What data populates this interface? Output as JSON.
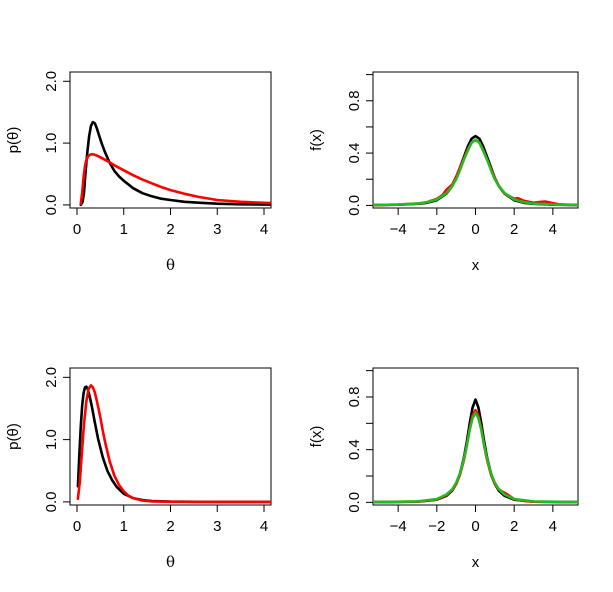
{
  "chart_data": [
    {
      "type": "line",
      "panel": "top-left",
      "xlabel": "θ",
      "ylabel": "p(θ)",
      "xlim": [
        -0.15,
        4.15
      ],
      "ylim": [
        -0.05,
        2.15
      ],
      "xticks": [
        0,
        1,
        2,
        3,
        4
      ],
      "xtick_labels": [
        "0",
        "1",
        "2",
        "3",
        "4"
      ],
      "yticks": [
        0.0,
        1.0,
        2.0
      ],
      "ytick_labels": [
        "0.0",
        "1.0",
        "2.0"
      ],
      "grid": false,
      "series": [
        {
          "color": "#000000",
          "x": [
            0.08,
            0.12,
            0.15,
            0.18,
            0.22,
            0.26,
            0.3,
            0.34,
            0.38,
            0.42,
            0.47,
            0.53,
            0.6,
            0.7,
            0.8,
            0.9,
            1.0,
            1.2,
            1.4,
            1.6,
            1.8,
            2.0,
            2.3,
            2.6,
            3.0,
            3.5,
            4.15
          ],
          "y": [
            0.0,
            0.05,
            0.2,
            0.5,
            0.85,
            1.12,
            1.28,
            1.34,
            1.32,
            1.25,
            1.13,
            0.99,
            0.85,
            0.68,
            0.55,
            0.46,
            0.39,
            0.27,
            0.19,
            0.14,
            0.1,
            0.08,
            0.05,
            0.035,
            0.02,
            0.01,
            0.005
          ]
        },
        {
          "color": "#ff0000",
          "x": [
            0.08,
            0.11,
            0.14,
            0.17,
            0.2,
            0.24,
            0.28,
            0.32,
            0.36,
            0.4,
            0.5,
            0.6,
            0.7,
            0.8,
            1.0,
            1.2,
            1.4,
            1.6,
            1.8,
            2.0,
            2.3,
            2.6,
            3.0,
            3.5,
            4.15
          ],
          "y": [
            0.02,
            0.2,
            0.45,
            0.63,
            0.73,
            0.79,
            0.81,
            0.82,
            0.815,
            0.805,
            0.77,
            0.73,
            0.69,
            0.64,
            0.56,
            0.48,
            0.41,
            0.35,
            0.29,
            0.24,
            0.18,
            0.13,
            0.08,
            0.05,
            0.03
          ]
        }
      ]
    },
    {
      "type": "line",
      "panel": "top-right",
      "xlabel": "x",
      "ylabel": "f(x)",
      "xlim": [
        -5.3,
        5.3
      ],
      "ylim": [
        -0.02,
        1.02
      ],
      "xticks": [
        -4,
        -2,
        0,
        2,
        4
      ],
      "xtick_labels": [
        "−4",
        "−2",
        "0",
        "2",
        "4"
      ],
      "yticks": [
        0.0,
        0.4,
        0.8
      ],
      "ytick_labels": [
        "0.0",
        "0.4",
        "0.8"
      ],
      "yminor_ticks": [
        0.2,
        0.6,
        1.0
      ],
      "grid": false,
      "series": [
        {
          "color": "#000000",
          "x": [
            -5.3,
            -4,
            -3,
            -2.5,
            -2,
            -1.5,
            -1.2,
            -1,
            -0.8,
            -0.6,
            -0.4,
            -0.2,
            0,
            0.2,
            0.4,
            0.6,
            0.8,
            1,
            1.2,
            1.5,
            2,
            2.5,
            3,
            4,
            5.3
          ],
          "y": [
            0.002,
            0.005,
            0.012,
            0.02,
            0.04,
            0.09,
            0.15,
            0.21,
            0.29,
            0.37,
            0.45,
            0.51,
            0.53,
            0.51,
            0.45,
            0.37,
            0.29,
            0.21,
            0.15,
            0.09,
            0.04,
            0.02,
            0.012,
            0.005,
            0.002
          ]
        },
        {
          "color": "#ff0000",
          "x": [
            -5.3,
            -4,
            -3,
            -2.5,
            -2,
            -1.7,
            -1.5,
            -1.2,
            -1,
            -0.8,
            -0.6,
            -0.4,
            -0.2,
            0,
            0.2,
            0.4,
            0.6,
            0.8,
            1,
            1.2,
            1.5,
            2,
            2.2,
            2.5,
            3,
            3.3,
            3.6,
            3.9,
            4.3,
            5.3
          ],
          "y": [
            0.002,
            0.006,
            0.014,
            0.025,
            0.05,
            0.08,
            0.12,
            0.16,
            0.22,
            0.29,
            0.36,
            0.43,
            0.48,
            0.5,
            0.48,
            0.42,
            0.35,
            0.28,
            0.21,
            0.15,
            0.09,
            0.05,
            0.055,
            0.035,
            0.02,
            0.025,
            0.03,
            0.02,
            0.008,
            0.003
          ]
        },
        {
          "color": "#22bb22",
          "x": [
            -5.3,
            -4,
            -3,
            -2.5,
            -2,
            -1.5,
            -1.2,
            -1,
            -0.8,
            -0.6,
            -0.4,
            -0.2,
            0,
            0.2,
            0.4,
            0.6,
            0.8,
            1,
            1.2,
            1.5,
            2,
            2.5,
            3,
            4,
            5.3
          ],
          "y": [
            0.003,
            0.006,
            0.014,
            0.024,
            0.045,
            0.095,
            0.15,
            0.2,
            0.27,
            0.35,
            0.42,
            0.48,
            0.5,
            0.48,
            0.42,
            0.35,
            0.27,
            0.2,
            0.15,
            0.095,
            0.045,
            0.024,
            0.014,
            0.006,
            0.003
          ]
        }
      ]
    },
    {
      "type": "line",
      "panel": "bottom-left",
      "xlabel": "θ",
      "ylabel": "p(θ)",
      "xlim": [
        -0.15,
        4.15
      ],
      "ylim": [
        -0.05,
        2.15
      ],
      "xticks": [
        0,
        1,
        2,
        3,
        4
      ],
      "xtick_labels": [
        "0",
        "1",
        "2",
        "3",
        "4"
      ],
      "yticks": [
        0.0,
        1.0,
        2.0
      ],
      "ytick_labels": [
        "0.0",
        "1.0",
        "2.0"
      ],
      "grid": false,
      "series": [
        {
          "color": "#000000",
          "x": [
            0.02,
            0.05,
            0.08,
            0.11,
            0.14,
            0.17,
            0.2,
            0.23,
            0.27,
            0.32,
            0.38,
            0.45,
            0.55,
            0.65,
            0.75,
            0.85,
            1.0,
            1.2,
            1.4,
            1.6,
            2.0,
            2.5,
            3.0,
            4.15
          ],
          "y": [
            0.25,
            0.75,
            1.22,
            1.55,
            1.75,
            1.84,
            1.85,
            1.81,
            1.7,
            1.52,
            1.28,
            1.02,
            0.72,
            0.5,
            0.35,
            0.24,
            0.13,
            0.06,
            0.03,
            0.015,
            0.004,
            0.001,
            0.0,
            0.0
          ]
        },
        {
          "color": "#ff0000",
          "x": [
            0.02,
            0.06,
            0.1,
            0.15,
            0.2,
            0.25,
            0.3,
            0.34,
            0.38,
            0.42,
            0.46,
            0.5,
            0.55,
            0.6,
            0.7,
            0.8,
            0.9,
            1.0,
            1.1,
            1.2,
            1.4,
            1.6,
            2.0,
            2.5,
            3.0,
            4.15
          ],
          "y": [
            0.05,
            0.32,
            0.75,
            1.25,
            1.62,
            1.82,
            1.87,
            1.84,
            1.76,
            1.64,
            1.5,
            1.35,
            1.15,
            0.96,
            0.65,
            0.42,
            0.27,
            0.17,
            0.1,
            0.06,
            0.02,
            0.008,
            0.001,
            0.0,
            0.0,
            0.0
          ]
        }
      ]
    },
    {
      "type": "line",
      "panel": "bottom-right",
      "xlabel": "x",
      "ylabel": "f(x)",
      "xlim": [
        -5.3,
        5.3
      ],
      "ylim": [
        -0.02,
        1.02
      ],
      "xticks": [
        -4,
        -2,
        0,
        2,
        4
      ],
      "xtick_labels": [
        "−4",
        "−2",
        "0",
        "2",
        "4"
      ],
      "yticks": [
        0.0,
        0.4,
        0.8
      ],
      "ytick_labels": [
        "0.0",
        "0.4",
        "0.8"
      ],
      "yminor_ticks": [
        0.2,
        0.6,
        1.0
      ],
      "grid": false,
      "series": [
        {
          "color": "#000000",
          "x": [
            -5.3,
            -3,
            -2,
            -1.5,
            -1.2,
            -1,
            -0.8,
            -0.6,
            -0.45,
            -0.3,
            -0.15,
            0,
            0.15,
            0.3,
            0.45,
            0.6,
            0.8,
            1,
            1.2,
            1.5,
            2,
            3,
            5.3
          ],
          "y": [
            0.001,
            0.005,
            0.02,
            0.05,
            0.09,
            0.14,
            0.22,
            0.34,
            0.46,
            0.6,
            0.72,
            0.78,
            0.72,
            0.6,
            0.46,
            0.34,
            0.22,
            0.14,
            0.09,
            0.05,
            0.02,
            0.005,
            0.001
          ]
        },
        {
          "color": "#ff0000",
          "x": [
            -5.3,
            -3,
            -2,
            -1.5,
            -1.2,
            -1,
            -0.8,
            -0.6,
            -0.45,
            -0.3,
            -0.15,
            0,
            0.15,
            0.3,
            0.45,
            0.6,
            0.8,
            1,
            1.2,
            1.4,
            1.6,
            1.8,
            2,
            2.5,
            3,
            5.3
          ],
          "y": [
            0.001,
            0.006,
            0.022,
            0.055,
            0.095,
            0.14,
            0.21,
            0.32,
            0.43,
            0.56,
            0.66,
            0.7,
            0.66,
            0.56,
            0.43,
            0.32,
            0.21,
            0.14,
            0.1,
            0.08,
            0.065,
            0.045,
            0.025,
            0.01,
            0.005,
            0.001
          ]
        },
        {
          "color": "#22bb22",
          "x": [
            -5.3,
            -3,
            -2,
            -1.5,
            -1.2,
            -1,
            -0.8,
            -0.6,
            -0.45,
            -0.3,
            -0.15,
            0,
            0.15,
            0.3,
            0.45,
            0.6,
            0.8,
            1,
            1.2,
            1.5,
            2,
            3,
            5.3
          ],
          "y": [
            0.002,
            0.007,
            0.025,
            0.06,
            0.1,
            0.15,
            0.22,
            0.33,
            0.43,
            0.55,
            0.64,
            0.68,
            0.64,
            0.55,
            0.43,
            0.33,
            0.22,
            0.15,
            0.1,
            0.06,
            0.025,
            0.007,
            0.002
          ]
        }
      ]
    }
  ]
}
